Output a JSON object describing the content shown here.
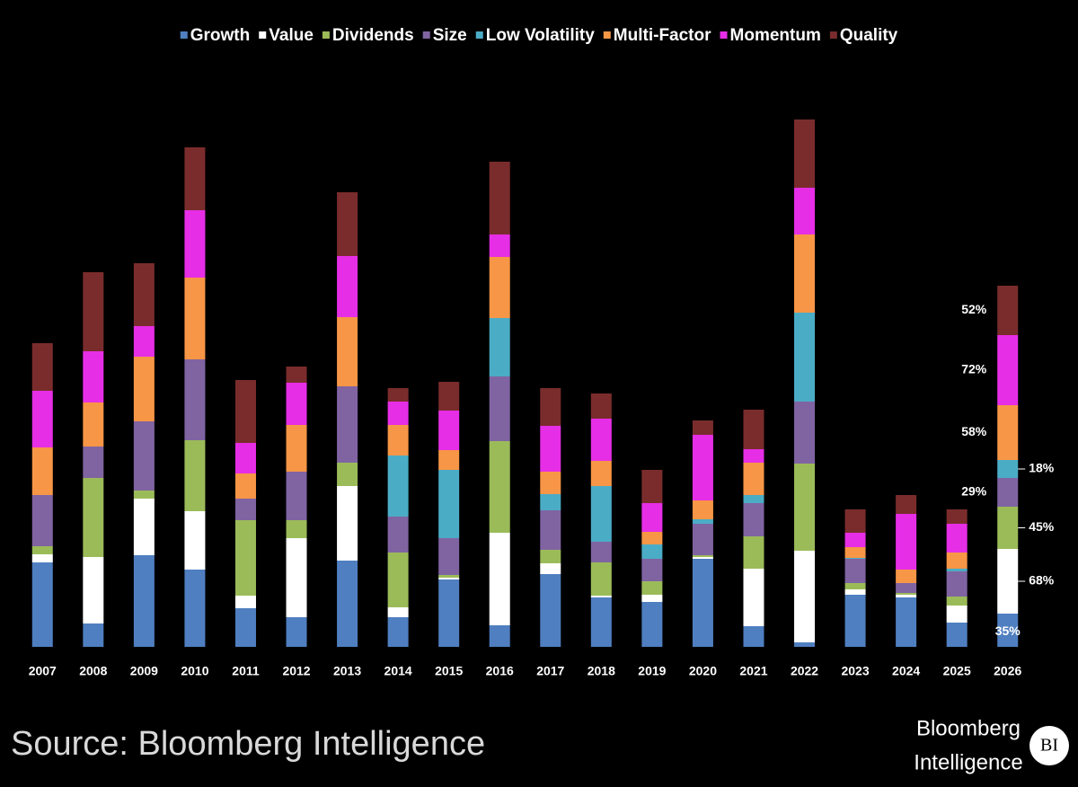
{
  "chart_data": {
    "type": "bar",
    "stacked": true,
    "categories": [
      "2007",
      "2008",
      "2009",
      "2010",
      "2011",
      "2012",
      "2013",
      "2014",
      "2015",
      "2016",
      "2017",
      "2018",
      "2019",
      "2020",
      "2021",
      "2022",
      "2023",
      "2024",
      "2025",
      "2026"
    ],
    "ylim": [
      0,
      660
    ],
    "series": [
      {
        "name": "Growth",
        "color": "#4f7fc0",
        "values": [
          94,
          26,
          102,
          86,
          43,
          33,
          96,
          33,
          75,
          24,
          81,
          55,
          50,
          98,
          23,
          5,
          58,
          55,
          27,
          37
        ],
        "label_2026": "35%"
      },
      {
        "name": "Value",
        "color": "#ffffff",
        "values": [
          9,
          74,
          63,
          65,
          14,
          88,
          83,
          11,
          2,
          103,
          12,
          2,
          8,
          2,
          64,
          102,
          6,
          3,
          19,
          72
        ],
        "label_2026": "68%"
      },
      {
        "name": "Dividends",
        "color": "#9bbb59",
        "values": [
          9,
          88,
          9,
          79,
          84,
          20,
          26,
          61,
          3,
          102,
          15,
          37,
          15,
          2,
          36,
          97,
          7,
          2,
          10,
          47
        ],
        "label_2026": "45%"
      },
      {
        "name": "Size",
        "color": "#8064a2",
        "values": [
          57,
          35,
          77,
          90,
          24,
          54,
          85,
          40,
          41,
          72,
          44,
          23,
          25,
          35,
          37,
          69,
          27,
          11,
          28,
          32
        ],
        "label_2026": "29%"
      },
      {
        "name": "Low Volatility",
        "color": "#4bacc6",
        "values": [
          0,
          0,
          0,
          0,
          0,
          0,
          0,
          68,
          76,
          65,
          18,
          62,
          16,
          5,
          9,
          99,
          1,
          0,
          3,
          20
        ],
        "label_2026": "18%"
      },
      {
        "name": "Multi-Factor",
        "color": "#f79646",
        "values": [
          53,
          49,
          72,
          91,
          28,
          52,
          77,
          34,
          22,
          68,
          25,
          28,
          14,
          21,
          36,
          87,
          12,
          15,
          18,
          61
        ],
        "label_2026": "58%"
      },
      {
        "name": "Momentum",
        "color": "#e62ee6",
        "values": [
          63,
          57,
          34,
          75,
          34,
          47,
          68,
          26,
          44,
          25,
          51,
          47,
          32,
          73,
          15,
          52,
          16,
          62,
          32,
          78
        ],
        "label_2026": "72%"
      },
      {
        "name": "Quality",
        "color": "#7a2c2c",
        "values": [
          53,
          88,
          70,
          70,
          70,
          18,
          71,
          15,
          32,
          81,
          42,
          28,
          37,
          16,
          44,
          76,
          26,
          21,
          16,
          55
        ],
        "label_2026": "52%"
      }
    ]
  },
  "footer": {
    "source": "Source: Bloomberg Intelligence",
    "brand": [
      "Bloomberg",
      "Intelligence"
    ],
    "badge": "BI"
  }
}
